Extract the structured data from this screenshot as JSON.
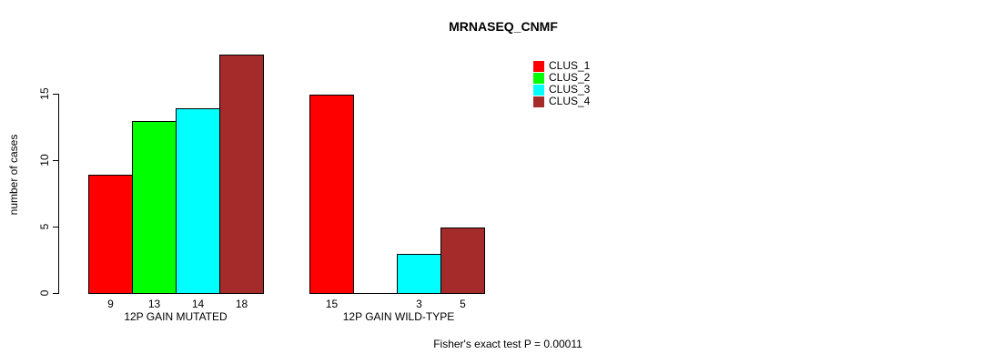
{
  "chart_data": {
    "type": "bar",
    "title": "MRNASEQ_CNMF",
    "ylabel": "number of cases",
    "xlabel": "",
    "yticks": [
      0,
      5,
      10,
      15
    ],
    "ylim": [
      0,
      18.5
    ],
    "grid": false,
    "legend_position": "top-right",
    "legend": [
      {
        "label": "CLUS_1",
        "color": "#ff0000"
      },
      {
        "label": "CLUS_2",
        "color": "#00ff00"
      },
      {
        "label": "CLUS_3",
        "color": "#00ffff"
      },
      {
        "label": "CLUS_4",
        "color": "#a52a2a"
      }
    ],
    "groups": [
      {
        "label": "12P GAIN MUTATED",
        "values": [
          9,
          13,
          14,
          18
        ]
      },
      {
        "label": "12P GAIN WILD-TYPE",
        "values": [
          15,
          0,
          3,
          5
        ]
      }
    ],
    "show_zero_value_labels": false,
    "annotation": "Fisher's exact test P = 0.00011",
    "colors": {
      "background": "#ffffff",
      "axis": "#000000",
      "text": "#000000"
    }
  }
}
